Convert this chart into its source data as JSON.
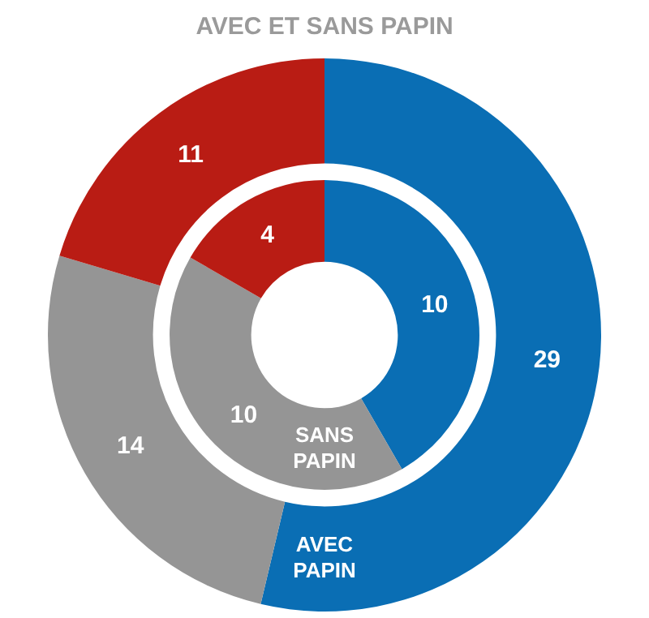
{
  "chart_data": {
    "type": "donut",
    "title": "AVEC ET SANS PAPIN",
    "categories": [
      null,
      null,
      null
    ],
    "series": [
      {
        "name": "AVEC PAPIN",
        "values": [
          29,
          14,
          11
        ],
        "colors": [
          "#0a6eb4",
          "#959595",
          "#b91c14"
        ]
      },
      {
        "name": "SANS PAPIN",
        "values": [
          10,
          10,
          4
        ],
        "colors": [
          "#0a6eb4",
          "#959595",
          "#b91c14"
        ]
      }
    ],
    "data_labels": true
  }
}
